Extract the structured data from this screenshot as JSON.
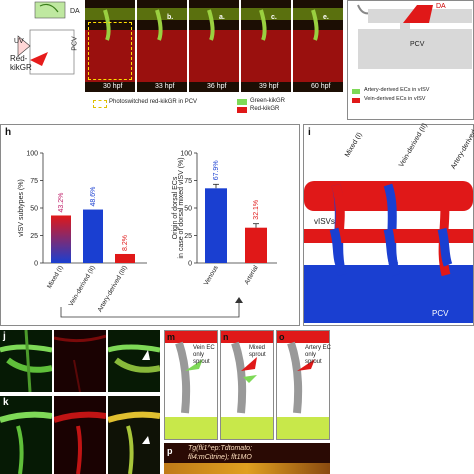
{
  "top": {
    "da_label": "DA",
    "pcv_label": "PCV",
    "uv_label": "UV",
    "red_kikgr_label": "Red-\nkikGR",
    "frames": [
      {
        "letter": "",
        "time": "30 hpf"
      },
      {
        "letter": "b.",
        "time": "33 hpf"
      },
      {
        "letter": "a.",
        "time": "36 hpf"
      },
      {
        "letter": "c.",
        "time": "39 hpf"
      },
      {
        "letter": "e.",
        "time": "60 hpf"
      }
    ],
    "legend_photo": "Photoswitched red-kikGR in PCV",
    "legend_green": "Green-kikGR",
    "legend_red": "Red-kikGR",
    "schematic_da": "DA",
    "schematic_pcv": "PCV",
    "schematic_legend_artery": "Artery-derived ECs in vISV",
    "schematic_legend_vein": "Vein-derived ECs in vISV"
  },
  "panel_h": {
    "letter": "h",
    "left_ylabel": "vISV subtypes (%)",
    "right_ylabel": "Origin of dorsal ECs in case of dorsal mixed vISV (%)",
    "left_ticks": [
      "0",
      "25",
      "50",
      "75",
      "100"
    ],
    "right_ticks": [
      "0",
      "25",
      "50",
      "75",
      "100"
    ]
  },
  "panel_i": {
    "letter": "i",
    "labels": [
      "Mixed (I)",
      "Vein-derived (II)",
      "Artery-derived (III)"
    ],
    "visv": "vISVs",
    "pcv": "PCV"
  },
  "panel_j": {
    "letter": "j"
  },
  "panel_k": {
    "letter": "k"
  },
  "panel_m": {
    "letter": "m",
    "caption": "Vein EC only sprout"
  },
  "panel_n": {
    "letter": "n",
    "caption": "Mixed sprout"
  },
  "panel_o": {
    "letter": "o",
    "caption": "Artery EC only sprout"
  },
  "panel_p": {
    "letter": "p",
    "line1": "Tg(fli1^ep:Tdtomato;",
    "line2": "fli4:mCitrine); flt1MO"
  },
  "chart_data": [
    {
      "type": "bar",
      "title": "",
      "categories": [
        "Mixed (I)",
        "Vein-derived (II)",
        "Artery-derived (III)"
      ],
      "values": [
        43.2,
        48.6,
        8.2
      ],
      "value_labels": [
        "43.2%",
        "48.6%",
        "8.2%"
      ],
      "ylabel": "vISV subtypes (%)",
      "ylim": [
        0,
        100
      ],
      "colors": [
        "#c0206a",
        "#1a3fd1",
        "#e01818"
      ]
    },
    {
      "type": "bar",
      "title": "",
      "categories": [
        "Venous",
        "Arterial"
      ],
      "values": [
        67.9,
        32.1
      ],
      "value_labels": [
        "67.9%",
        "32.1%"
      ],
      "ylabel": "Origin of dorsal ECs in case of dorsal mixed vISV (%)",
      "ylim": [
        0,
        100
      ],
      "colors": [
        "#1a3fd1",
        "#e01818"
      ]
    }
  ]
}
